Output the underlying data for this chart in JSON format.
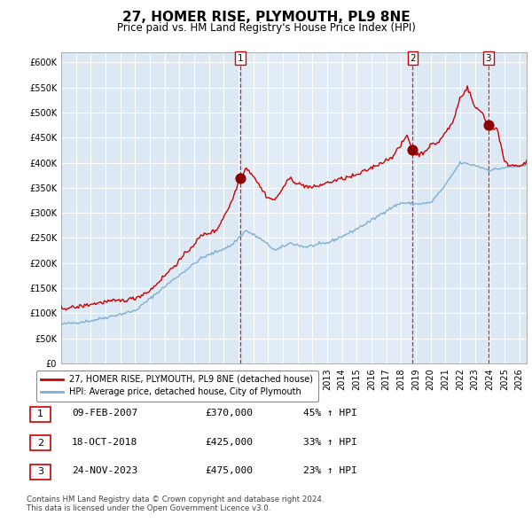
{
  "title": "27, HOMER RISE, PLYMOUTH, PL9 8NE",
  "subtitle": "Price paid vs. HM Land Registry's House Price Index (HPI)",
  "title_fontsize": 11,
  "subtitle_fontsize": 8.5,
  "ylim": [
    0,
    620000
  ],
  "yticks": [
    0,
    50000,
    100000,
    150000,
    200000,
    250000,
    300000,
    350000,
    400000,
    450000,
    500000,
    550000,
    600000
  ],
  "xlim_start": 1995.0,
  "xlim_end": 2026.5,
  "bg_color": "#dce9f5",
  "plot_bg": "#dce9f5",
  "grid_color": "#ffffff",
  "hpi_line_color": "#7eafd4",
  "price_line_color": "#cc0000",
  "sale_dot_color": "#8b0000",
  "sale_marker_size": 60,
  "vline_color": "#cc0000",
  "sale1_x": 2007.11,
  "sale1_y": 370000,
  "sale2_x": 2018.79,
  "sale2_y": 425000,
  "sale3_x": 2023.9,
  "sale3_y": 475000,
  "legend_label_price": "27, HOMER RISE, PLYMOUTH, PL9 8NE (detached house)",
  "legend_label_hpi": "HPI: Average price, detached house, City of Plymouth",
  "table_rows": [
    {
      "num": "1",
      "date": "09-FEB-2007",
      "price": "£370,000",
      "hpi": "45% ↑ HPI"
    },
    {
      "num": "2",
      "date": "18-OCT-2018",
      "price": "£425,000",
      "hpi": "33% ↑ HPI"
    },
    {
      "num": "3",
      "date": "24-NOV-2023",
      "price": "£475,000",
      "hpi": "23% ↑ HPI"
    }
  ],
  "footnote1": "Contains HM Land Registry data © Crown copyright and database right 2024.",
  "footnote2": "This data is licensed under the Open Government Licence v3.0.",
  "hatch_region_start": 2007.11,
  "hatch_region_end": 2018.79,
  "hatch_region2_start": 2023.9
}
